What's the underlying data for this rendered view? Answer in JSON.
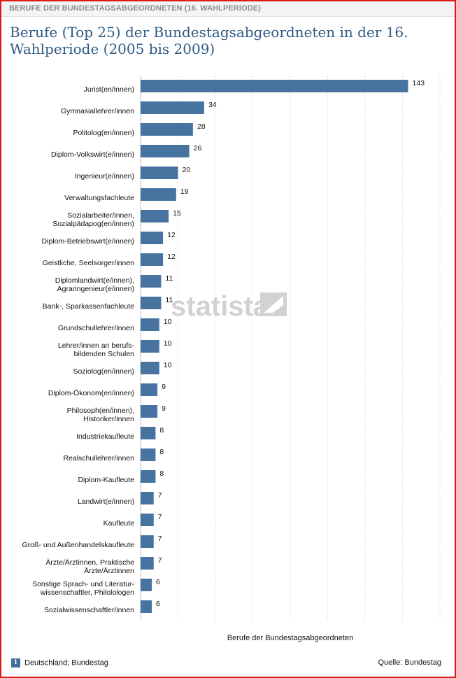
{
  "header": {
    "label": "BERUFE DER BUNDESTAGSABGEORDNETEN (16. WAHLPERIODE)"
  },
  "footer": {
    "region_text": "Deutschland; Bundestag",
    "source_text": "Quelle: Bundestag",
    "info_glyph": "i"
  },
  "watermark": {
    "text": "statista"
  },
  "colors": {
    "bar": "#4673a0",
    "grid": "#e2e2e2",
    "frame": "#e01818",
    "title": "#2e5b84"
  },
  "chart_data": {
    "type": "bar",
    "orientation": "horizontal",
    "title": "Berufe (Top 25) der Bundestagsabgeordneten in der 16. Wahlperiode (2005 bis 2009)",
    "xlabel": "Berufe der Bundestagsabgeordneten",
    "ylabel": "",
    "xlim": [
      0,
      160
    ],
    "grid": true,
    "categories": [
      [
        "Jurist(en/innen)"
      ],
      [
        "Gymnasiallehrer/innen"
      ],
      [
        "Politolog(en/innen)"
      ],
      [
        "Diplom-Volkswirt(e/innen)"
      ],
      [
        "Ingenieur(e/innen)"
      ],
      [
        "Verwaltungsfachleute"
      ],
      [
        "Sozialarbeiter/innen,",
        "Sozialpädapog(en/innen)"
      ],
      [
        "Diplom-Betriebswirt(e/innen)"
      ],
      [
        "Geistliche, Seelsorger/innen"
      ],
      [
        "Diplomlandwirt(e/innen),",
        "Agraringenieur(e/innen)"
      ],
      [
        "Bank-, Sparkassenfachleute"
      ],
      [
        "Grundschullehrer/innen"
      ],
      [
        "Lehrer/innen an berufs-",
        "bildenden Schulen"
      ],
      [
        "Soziolog(en/innen)"
      ],
      [
        "Diplom-Ökonom(en/innen)"
      ],
      [
        "Philosoph(en/innen),",
        "Historiker/innen"
      ],
      [
        "Industriekaufleute"
      ],
      [
        "Realschullehrer/innen"
      ],
      [
        "Diplom-Kaufleute"
      ],
      [
        "Landwirt(e/innen)"
      ],
      [
        "Kaufleute"
      ],
      [
        "Groß- und Außenhandelskaufleute"
      ],
      [
        "Ärzte/Ärztinnen, Praktische",
        "Ärzte/Ärztinnen"
      ],
      [
        "Sonstige Sprach- und Literatur-",
        "wissenschaftler, Philolologen"
      ],
      [
        "Sozialwissenschaftler/innen"
      ]
    ],
    "values": [
      143,
      34,
      28,
      26,
      20,
      19,
      15,
      12,
      12,
      11,
      11,
      10,
      10,
      10,
      9,
      9,
      8,
      8,
      8,
      7,
      7,
      7,
      7,
      6,
      6
    ]
  }
}
